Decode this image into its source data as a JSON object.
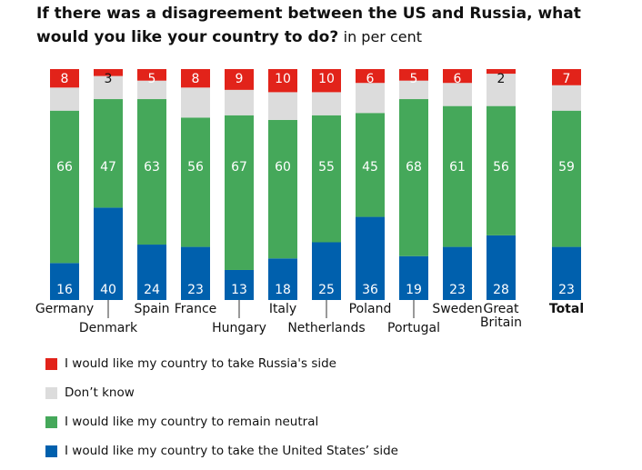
{
  "chart_data": {
    "type": "bar",
    "stacked": true,
    "title": "If there was a disagreement between the US and Russia, what would you like your country to do?",
    "subtitle": "in per cent",
    "categories": [
      "Germany",
      "Denmark",
      "Spain",
      "France",
      "Hungary",
      "Italy",
      "Netherlands",
      "Poland",
      "Portugal",
      "Sweden",
      "Great Britain",
      "Total"
    ],
    "series": [
      {
        "name": "I would like my country to take the United States’ side",
        "color": "#0060ad",
        "values": [
          16,
          40,
          24,
          23,
          13,
          18,
          25,
          36,
          19,
          23,
          28,
          23
        ]
      },
      {
        "name": "I would like my country to remain neutral",
        "color": "#45a85a",
        "values": [
          66,
          47,
          63,
          56,
          67,
          60,
          55,
          45,
          68,
          61,
          56,
          59
        ]
      },
      {
        "name": "Don’t know",
        "color": "#dcdcdc",
        "values": [
          10,
          10,
          8,
          13,
          11,
          12,
          10,
          13,
          8,
          10,
          14,
          11
        ]
      },
      {
        "name": "I would like my country to take Russia's side",
        "color": "#e2231a",
        "values": [
          8,
          3,
          5,
          8,
          9,
          10,
          10,
          6,
          5,
          6,
          2,
          7
        ]
      }
    ],
    "ylim": [
      0,
      100
    ],
    "grid": false,
    "legend_placement": "bottom"
  }
}
